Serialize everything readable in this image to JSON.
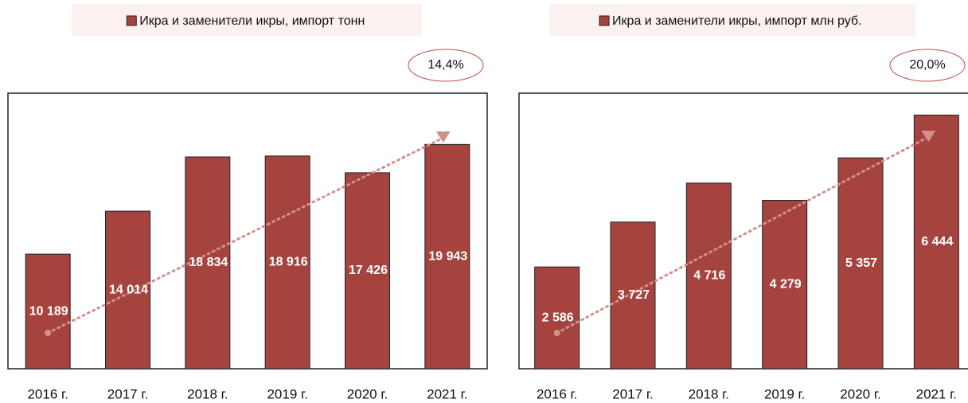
{
  "chart_data": [
    {
      "type": "bar",
      "series": [
        {
          "name": "Икра и заменители икры, импорт тонн",
          "color": "#a5443f",
          "values": [
            10189,
            14014,
            18834,
            18916,
            17426,
            19943
          ],
          "value_labels": [
            "10 189",
            "14 014",
            "18 834",
            "18 916",
            "17 426",
            "19 943"
          ]
        }
      ],
      "categories": [
        "2016 г.",
        "2017 г.",
        "2018 г.",
        "2019 г.",
        "2020 г.",
        "2021 г."
      ],
      "annotation": "14,4%",
      "ylim": [
        0,
        24500
      ]
    },
    {
      "type": "bar",
      "series": [
        {
          "name": "Икра и заменители икры, импорт млн руб.",
          "color": "#a5443f",
          "values": [
            2586,
            3727,
            4716,
            4279,
            5357,
            6444
          ],
          "value_labels": [
            "2 586",
            "3 727",
            "4 716",
            "4 279",
            "5 357",
            "6 444"
          ]
        }
      ],
      "categories": [
        "2016 г.",
        "2017 г.",
        "2018 г.",
        "2019 г.",
        "2020 г.",
        "2021 г."
      ],
      "annotation": "20,0%",
      "ylim": [
        0,
        7000
      ]
    }
  ]
}
